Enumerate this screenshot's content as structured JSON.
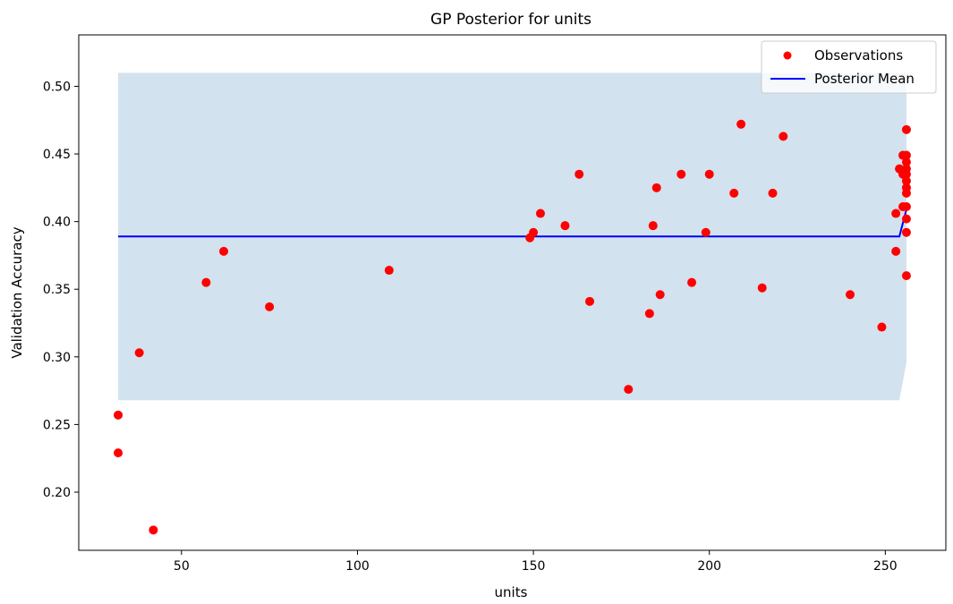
{
  "chart_data": {
    "type": "scatter",
    "title": "GP Posterior for units",
    "xlabel": "units",
    "ylabel": "Validation Accuracy",
    "xlim": [
      20.8,
      267.2
    ],
    "ylim": [
      0.157,
      0.538
    ],
    "xticks": [
      50,
      100,
      150,
      200,
      250
    ],
    "yticks": [
      0.2,
      0.25,
      0.3,
      0.35,
      0.4,
      0.45,
      0.5
    ],
    "xtick_labels": [
      "50",
      "100",
      "150",
      "200",
      "250"
    ],
    "ytick_labels": [
      "0.20",
      "0.25",
      "0.30",
      "0.35",
      "0.40",
      "0.45",
      "0.50"
    ],
    "grid": false,
    "legend_position": "top-right",
    "colors": {
      "observations": "#ff0000",
      "mean": "#0000ff",
      "band": "#d2e2ee"
    },
    "series": [
      {
        "name": "Observations",
        "kind": "points",
        "points": [
          [
            32,
            0.257
          ],
          [
            32,
            0.229
          ],
          [
            38,
            0.303
          ],
          [
            42,
            0.172
          ],
          [
            57,
            0.355
          ],
          [
            62,
            0.378
          ],
          [
            75,
            0.337
          ],
          [
            109,
            0.364
          ],
          [
            149,
            0.388
          ],
          [
            150,
            0.392
          ],
          [
            152,
            0.406
          ],
          [
            159,
            0.397
          ],
          [
            163,
            0.435
          ],
          [
            166,
            0.341
          ],
          [
            177,
            0.276
          ],
          [
            183,
            0.332
          ],
          [
            184,
            0.397
          ],
          [
            185,
            0.425
          ],
          [
            186,
            0.346
          ],
          [
            192,
            0.435
          ],
          [
            195,
            0.355
          ],
          [
            199,
            0.392
          ],
          [
            200,
            0.435
          ],
          [
            207,
            0.421
          ],
          [
            209,
            0.472
          ],
          [
            215,
            0.351
          ],
          [
            218,
            0.421
          ],
          [
            221,
            0.463
          ],
          [
            240,
            0.346
          ],
          [
            249,
            0.322
          ],
          [
            253,
            0.406
          ],
          [
            253,
            0.378
          ],
          [
            254,
            0.439
          ],
          [
            255,
            0.449
          ],
          [
            255,
            0.411
          ],
          [
            255,
            0.435
          ],
          [
            256,
            0.468
          ],
          [
            256,
            0.449
          ],
          [
            256,
            0.444
          ],
          [
            256,
            0.439
          ],
          [
            256,
            0.435
          ],
          [
            256,
            0.43
          ],
          [
            256,
            0.425
          ],
          [
            256,
            0.421
          ],
          [
            256,
            0.411
          ],
          [
            256,
            0.402
          ],
          [
            256,
            0.392
          ],
          [
            256,
            0.36
          ]
        ]
      },
      {
        "name": "Posterior Mean",
        "kind": "line",
        "x": [
          32,
          254,
          256
        ],
        "y": [
          0.389,
          0.389,
          0.409
        ]
      }
    ],
    "confidence_band": {
      "x": [
        32,
        254,
        256
      ],
      "lower": [
        0.268,
        0.268,
        0.296
      ],
      "upper": [
        0.51,
        0.51,
        0.51
      ]
    }
  }
}
